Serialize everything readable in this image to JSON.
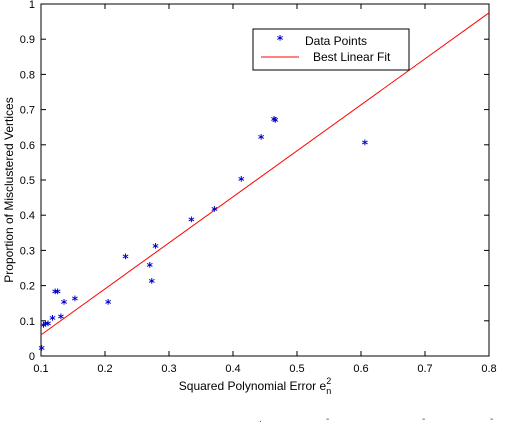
{
  "chart_data": {
    "type": "scatter",
    "xlabel": "Squared Polynomial Error e",
    "xlabel_sup": "2",
    "xlabel_sub": "n",
    "ylabel": "Proportion of Misclustered Vertices",
    "xlim": [
      0.1,
      0.8
    ],
    "ylim": [
      0,
      1
    ],
    "xticks": [
      "0.1",
      "0.2",
      "0.3",
      "0.4",
      "0.5",
      "0.6",
      "0.7",
      "0.8"
    ],
    "yticks": [
      "0",
      "0.1",
      "0.2",
      "0.3",
      "0.4",
      "0.5",
      "0.6",
      "0.7",
      "0.8",
      "0.9",
      "1"
    ],
    "grid": false,
    "legend_position": "top-right",
    "series": [
      {
        "name": "Data Points",
        "type": "scatter",
        "marker": "*",
        "color": "#0000cc",
        "points": [
          [
            0.101,
            0.02
          ],
          [
            0.104,
            0.085
          ],
          [
            0.107,
            0.09
          ],
          [
            0.111,
            0.09
          ],
          [
            0.118,
            0.105
          ],
          [
            0.122,
            0.18
          ],
          [
            0.126,
            0.18
          ],
          [
            0.131,
            0.11
          ],
          [
            0.136,
            0.15
          ],
          [
            0.153,
            0.16
          ],
          [
            0.205,
            0.15
          ],
          [
            0.232,
            0.28
          ],
          [
            0.27,
            0.255
          ],
          [
            0.273,
            0.21
          ],
          [
            0.279,
            0.31
          ],
          [
            0.335,
            0.385
          ],
          [
            0.371,
            0.415
          ],
          [
            0.413,
            0.5
          ],
          [
            0.444,
            0.62
          ],
          [
            0.464,
            0.67
          ],
          [
            0.466,
            0.668
          ],
          [
            0.606,
            0.603
          ]
        ]
      },
      {
        "name": "Best Linear Fit",
        "type": "line",
        "color": "#ff0000",
        "points": [
          [
            0.1,
            0.06
          ],
          [
            0.8,
            0.975
          ]
        ]
      }
    ]
  },
  "annotations": [
    ".",
    "-",
    "-",
    "-"
  ]
}
